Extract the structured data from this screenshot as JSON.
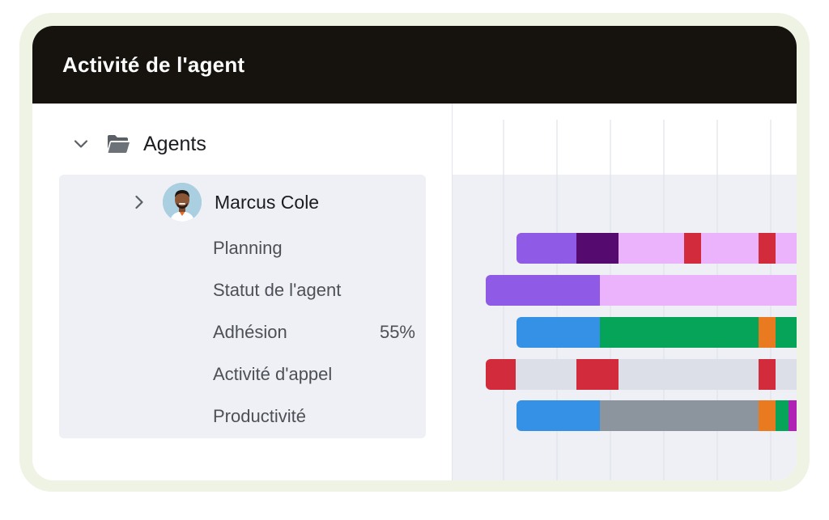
{
  "header": {
    "title": "Activité de l'agent"
  },
  "tree": {
    "group_label": "Agents",
    "agent": {
      "name": "Marcus Cole",
      "metrics": [
        {
          "label": "Planning",
          "value": ""
        },
        {
          "label": "Statut de l'agent",
          "value": ""
        },
        {
          "label": "Adhésion",
          "value": "55%"
        },
        {
          "label": "Activité d'appel",
          "value": ""
        },
        {
          "label": "Productivité",
          "value": ""
        }
      ]
    }
  },
  "icons": {
    "group_toggle": "chevron-down-icon",
    "group": "folder-icon",
    "agent_toggle": "chevron-right-icon",
    "avatar": "avatar"
  },
  "colors": {
    "header_bg": "#16130f",
    "row_highlight": "#eef0f5",
    "purple": "#8e5ae6",
    "dark_purple": "#540a6e",
    "light_pink": "#ebb3fb",
    "red": "#d12b3c",
    "blue": "#3591e6",
    "green": "#06a458",
    "orange": "#ea7a1f",
    "light_gray": "#dcdfe8",
    "gray": "#8c959e",
    "magenta": "#b022b3"
  },
  "timeline_rows": [
    {
      "name": "Planning",
      "segments": [
        "purple",
        "dark_purple",
        "light_pink",
        "red",
        "light_pink",
        "red",
        "light_pink"
      ]
    },
    {
      "name": "Statut de l'agent",
      "segments": [
        "purple",
        "light_pink"
      ]
    },
    {
      "name": "Adhésion",
      "segments": [
        "blue",
        "green",
        "orange",
        "green"
      ]
    },
    {
      "name": "Activité d'appel",
      "segments": [
        "red",
        "light_gray",
        "red",
        "light_gray",
        "red",
        "light_gray"
      ]
    },
    {
      "name": "Productivité",
      "segments": [
        "blue",
        "gray",
        "orange",
        "green",
        "magenta"
      ]
    }
  ]
}
